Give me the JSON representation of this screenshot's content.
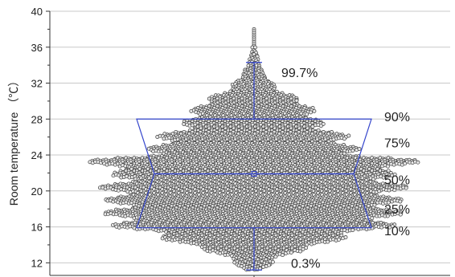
{
  "chart_data": {
    "type": "scatter",
    "ylabel": "Room temperature （℃）",
    "xlabel": "",
    "ylim": [
      10.6,
      40
    ],
    "yticks": [
      12,
      16,
      20,
      24,
      28,
      32,
      36,
      40
    ],
    "grid": "horizontal",
    "whisker": {
      "min": 11.2,
      "max": 34.3
    },
    "median_line": 21.9,
    "box": {
      "p10": 15.9,
      "p90": 28.0,
      "p25": 21.8,
      "p75": 22.0
    },
    "outlier_max": 38.0,
    "percentile_labels": [
      {
        "text": "99.7%",
        "y": 33.2
      },
      {
        "text": "90%",
        "y": 28.3
      },
      {
        "text": "75%",
        "y": 25.4
      },
      {
        "text": "50%",
        "y": 21.3
      },
      {
        "text": "25%",
        "y": 18.0
      },
      {
        "text": "10%",
        "y": 15.6
      },
      {
        "text": "0.3%",
        "y": 12.0
      }
    ],
    "distribution": [
      [
        11.2,
        0.05
      ],
      [
        12.0,
        0.12
      ],
      [
        13.0,
        0.2
      ],
      [
        14.0,
        0.45
      ],
      [
        15.0,
        0.6
      ],
      [
        16.0,
        0.85
      ],
      [
        17.0,
        0.9
      ],
      [
        18.0,
        0.92
      ],
      [
        19.0,
        0.9
      ],
      [
        20.0,
        0.95
      ],
      [
        21.0,
        0.92
      ],
      [
        22.0,
        0.85
      ],
      [
        22.5,
        1.0
      ],
      [
        23.0,
        1.0
      ],
      [
        23.5,
        1.0
      ],
      [
        24.0,
        0.7
      ],
      [
        25.0,
        0.62
      ],
      [
        26.0,
        0.6
      ],
      [
        27.0,
        0.45
      ],
      [
        28.0,
        0.42
      ],
      [
        29.0,
        0.38
      ],
      [
        30.0,
        0.32
      ],
      [
        31.0,
        0.18
      ],
      [
        32.0,
        0.12
      ],
      [
        33.0,
        0.07
      ],
      [
        34.0,
        0.04
      ],
      [
        35.0,
        0.02
      ],
      [
        36.0,
        0.01
      ],
      [
        37.0,
        0.005
      ],
      [
        38.0,
        0.004
      ]
    ]
  }
}
